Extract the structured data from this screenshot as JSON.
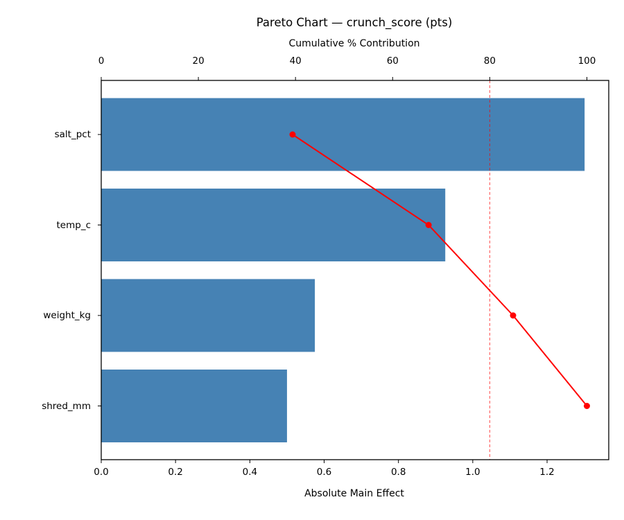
{
  "chart_data": {
    "type": "bar",
    "orientation": "horizontal",
    "title": "Pareto Chart — crunch_score (pts)",
    "xlabel": "Absolute Main Effect",
    "x2label": "Cumulative % Contribution",
    "ylabel": "",
    "categories": [
      "salt_pct",
      "temp_c",
      "weight_kg",
      "shred_mm"
    ],
    "series": [
      {
        "name": "Absolute Main Effect",
        "type": "bar",
        "color": "#4682b4",
        "values": [
          1.301,
          0.926,
          0.575,
          0.5
        ]
      },
      {
        "name": "Cumulative % Contribution",
        "type": "line",
        "axis": "top",
        "color": "#ff0000",
        "values": [
          39.4,
          67.4,
          84.8,
          100.0
        ]
      }
    ],
    "reference_line": {
      "axis": "top",
      "value": 80,
      "style": "dashed",
      "color": "#ff0000"
    },
    "xlim": [
      0,
      1.366
    ],
    "x2lim": [
      0,
      104.5
    ],
    "xticks": [
      "0.0",
      "0.2",
      "0.4",
      "0.6",
      "0.8",
      "1.0",
      "1.2"
    ],
    "x2ticks": [
      "0",
      "20",
      "40",
      "60",
      "80",
      "100"
    ],
    "grid": false,
    "legend": null
  },
  "labels": {
    "title": "Pareto Chart — crunch_score (pts)",
    "xlabel": "Absolute Main Effect",
    "x2label": "Cumulative % Contribution",
    "xticks": [
      "0.0",
      "0.2",
      "0.4",
      "0.6",
      "0.8",
      "1.0",
      "1.2"
    ],
    "x2ticks": [
      "0",
      "20",
      "40",
      "60",
      "80",
      "100"
    ],
    "yticks": [
      "salt_pct",
      "temp_c",
      "weight_kg",
      "shred_mm"
    ]
  }
}
